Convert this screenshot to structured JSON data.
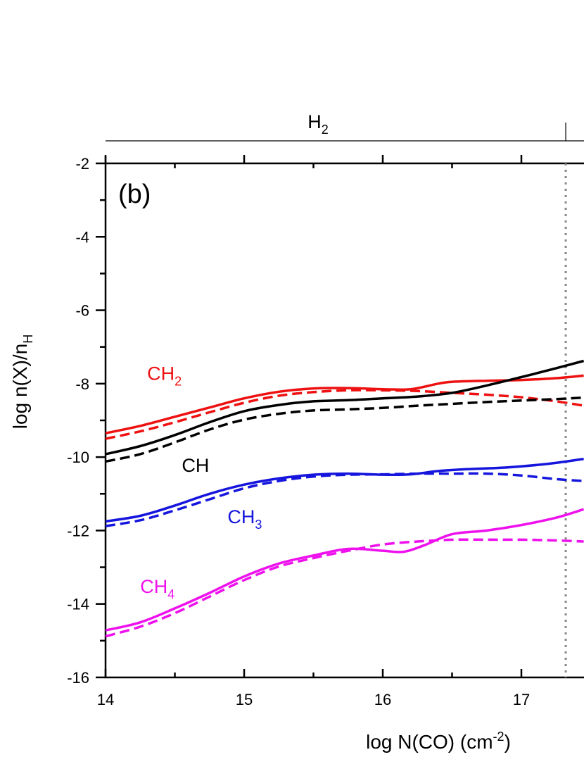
{
  "chart_data": {
    "type": "line",
    "panel_label": "(b)",
    "xlabel": {
      "main": "log N(CO) (cm",
      "sup": "-2",
      "end": ")"
    },
    "ylabel": {
      "main": "log n(X)/n",
      "sub": "H"
    },
    "xlim": [
      14,
      17.45
    ],
    "ylim": [
      -16,
      -2
    ],
    "xticks": [
      14,
      15,
      16,
      17
    ],
    "xtick_labels": [
      "14",
      "15",
      "16",
      "17"
    ],
    "yticks": [
      -2,
      -4,
      -6,
      -8,
      -10,
      -12,
      -14,
      -16
    ],
    "ytick_labels": [
      "-2",
      "-4",
      "-6",
      "-8",
      "-10",
      "-12",
      "-14",
      "-16"
    ],
    "top_bar": {
      "label_main": "H",
      "label_sub": "2",
      "marker_x": 17.32
    },
    "vline_x": 17.32,
    "series": [
      {
        "name": "CH2",
        "name_main": "CH",
        "name_sub": "2",
        "label_x": 14.3,
        "label_y": -7.9,
        "color": "#ee1111",
        "solid": [
          [
            14,
            -9.35
          ],
          [
            14.25,
            -9.15
          ],
          [
            14.5,
            -8.9
          ],
          [
            14.75,
            -8.65
          ],
          [
            15,
            -8.4
          ],
          [
            15.25,
            -8.22
          ],
          [
            15.5,
            -8.13
          ],
          [
            15.75,
            -8.12
          ],
          [
            16,
            -8.15
          ],
          [
            16.2,
            -8.15
          ],
          [
            16.4,
            -8.0
          ],
          [
            16.5,
            -7.95
          ],
          [
            16.75,
            -7.92
          ],
          [
            17,
            -7.9
          ],
          [
            17.25,
            -7.85
          ],
          [
            17.45,
            -7.78
          ]
        ],
        "dashed": [
          [
            14,
            -9.5
          ],
          [
            14.25,
            -9.3
          ],
          [
            14.5,
            -9.05
          ],
          [
            14.75,
            -8.78
          ],
          [
            15,
            -8.52
          ],
          [
            15.25,
            -8.33
          ],
          [
            15.5,
            -8.23
          ],
          [
            15.75,
            -8.18
          ],
          [
            16,
            -8.18
          ],
          [
            16.25,
            -8.2
          ],
          [
            16.5,
            -8.25
          ],
          [
            16.75,
            -8.3
          ],
          [
            17,
            -8.37
          ],
          [
            17.25,
            -8.48
          ],
          [
            17.45,
            -8.6
          ]
        ]
      },
      {
        "name": "CH",
        "name_main": "CH",
        "name_sub": "",
        "label_x": 14.55,
        "label_y": -10.4,
        "color": "#000000",
        "solid": [
          [
            14,
            -9.92
          ],
          [
            14.25,
            -9.7
          ],
          [
            14.5,
            -9.4
          ],
          [
            14.75,
            -9.05
          ],
          [
            15,
            -8.75
          ],
          [
            15.25,
            -8.58
          ],
          [
            15.5,
            -8.48
          ],
          [
            15.75,
            -8.45
          ],
          [
            16,
            -8.4
          ],
          [
            16.25,
            -8.35
          ],
          [
            16.5,
            -8.25
          ],
          [
            16.75,
            -8.05
          ],
          [
            17,
            -7.82
          ],
          [
            17.25,
            -7.58
          ],
          [
            17.45,
            -7.38
          ]
        ],
        "dashed": [
          [
            14,
            -10.12
          ],
          [
            14.25,
            -9.92
          ],
          [
            14.5,
            -9.6
          ],
          [
            14.75,
            -9.25
          ],
          [
            15,
            -8.98
          ],
          [
            15.25,
            -8.82
          ],
          [
            15.5,
            -8.73
          ],
          [
            15.75,
            -8.7
          ],
          [
            16,
            -8.66
          ],
          [
            16.25,
            -8.6
          ],
          [
            16.5,
            -8.55
          ],
          [
            16.75,
            -8.5
          ],
          [
            17,
            -8.46
          ],
          [
            17.25,
            -8.42
          ],
          [
            17.45,
            -8.38
          ]
        ]
      },
      {
        "name": "CH3",
        "name_main": "CH",
        "name_sub": "3",
        "label_x": 14.88,
        "label_y": -11.8,
        "color": "#1515dd",
        "solid": [
          [
            14,
            -11.75
          ],
          [
            14.25,
            -11.6
          ],
          [
            14.5,
            -11.32
          ],
          [
            14.75,
            -11.0
          ],
          [
            15,
            -10.75
          ],
          [
            15.25,
            -10.58
          ],
          [
            15.5,
            -10.48
          ],
          [
            15.75,
            -10.45
          ],
          [
            16,
            -10.48
          ],
          [
            16.2,
            -10.47
          ],
          [
            16.4,
            -10.38
          ],
          [
            16.6,
            -10.33
          ],
          [
            16.9,
            -10.28
          ],
          [
            17.2,
            -10.18
          ],
          [
            17.45,
            -10.05
          ]
        ],
        "dashed": [
          [
            14,
            -11.88
          ],
          [
            14.25,
            -11.72
          ],
          [
            14.5,
            -11.45
          ],
          [
            14.75,
            -11.15
          ],
          [
            15,
            -10.85
          ],
          [
            15.25,
            -10.65
          ],
          [
            15.5,
            -10.53
          ],
          [
            15.75,
            -10.48
          ],
          [
            16,
            -10.47
          ],
          [
            16.25,
            -10.45
          ],
          [
            16.5,
            -10.45
          ],
          [
            16.75,
            -10.45
          ],
          [
            17,
            -10.5
          ],
          [
            17.25,
            -10.6
          ],
          [
            17.45,
            -10.65
          ]
        ]
      },
      {
        "name": "CH4",
        "name_main": "CH",
        "name_sub": "4",
        "label_x": 14.25,
        "label_y": -13.7,
        "color": "#ee11ee",
        "solid": [
          [
            14,
            -14.72
          ],
          [
            14.25,
            -14.5
          ],
          [
            14.5,
            -14.12
          ],
          [
            14.75,
            -13.7
          ],
          [
            15,
            -13.25
          ],
          [
            15.25,
            -12.9
          ],
          [
            15.5,
            -12.68
          ],
          [
            15.75,
            -12.5
          ],
          [
            16,
            -12.55
          ],
          [
            16.15,
            -12.58
          ],
          [
            16.3,
            -12.4
          ],
          [
            16.5,
            -12.1
          ],
          [
            16.75,
            -12.0
          ],
          [
            17,
            -11.85
          ],
          [
            17.25,
            -11.65
          ],
          [
            17.45,
            -11.42
          ]
        ],
        "dashed": [
          [
            14,
            -14.88
          ],
          [
            14.25,
            -14.62
          ],
          [
            14.5,
            -14.25
          ],
          [
            14.75,
            -13.8
          ],
          [
            15,
            -13.35
          ],
          [
            15.25,
            -12.98
          ],
          [
            15.5,
            -12.75
          ],
          [
            15.75,
            -12.55
          ],
          [
            16,
            -12.38
          ],
          [
            16.25,
            -12.3
          ],
          [
            16.5,
            -12.25
          ],
          [
            16.75,
            -12.25
          ],
          [
            17,
            -12.25
          ],
          [
            17.25,
            -12.27
          ],
          [
            17.45,
            -12.3
          ]
        ]
      }
    ]
  }
}
